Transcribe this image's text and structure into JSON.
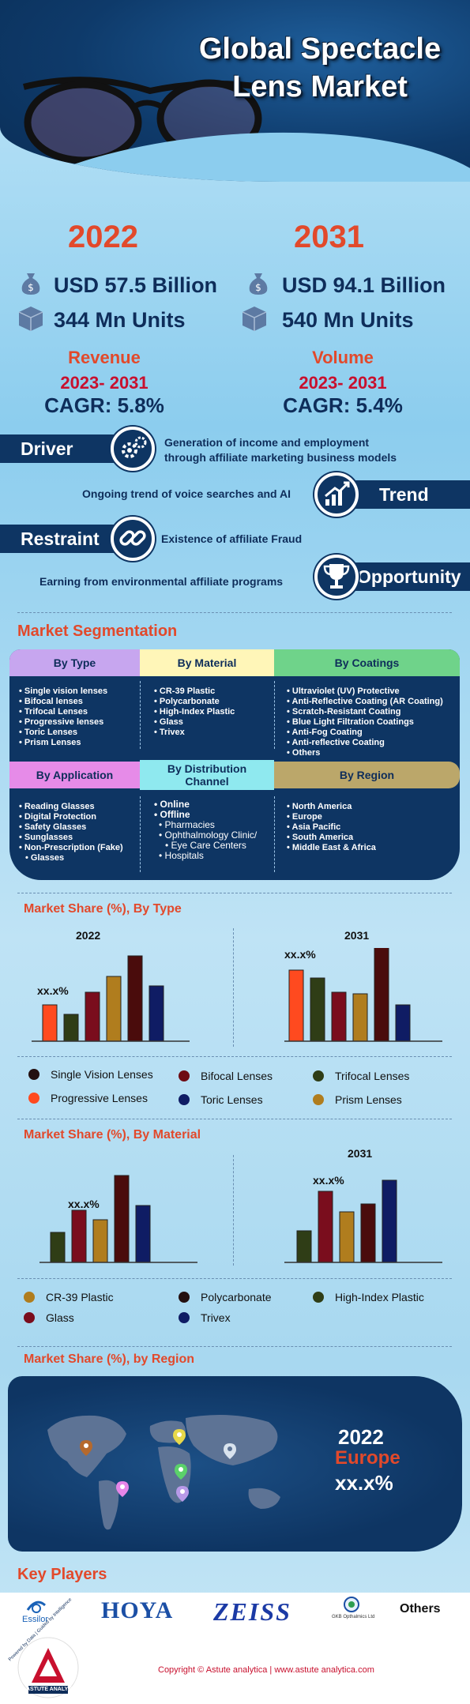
{
  "header": {
    "title_line1": "Global Spectacle",
    "title_line2": "Lens Market"
  },
  "overview": {
    "left": {
      "year": "2022",
      "revenue": "USD 57.5 Billion",
      "volume": "344 Mn Units"
    },
    "right": {
      "year": "2031",
      "revenue": "USD 94.1 Billion",
      "volume": "540 Mn Units"
    },
    "revenue_cagr": {
      "label": "Revenue",
      "years": "2023- 2031",
      "cagr": "CAGR: 5.8%"
    },
    "volume_cagr": {
      "label": "Volume",
      "years": "2023- 2031",
      "cagr": "CAGR: 5.4%"
    }
  },
  "factors": {
    "driver": {
      "label": "Driver",
      "text_line1": "Generation of income and employment",
      "text_line2": "through affiliate marketing business models"
    },
    "trend": {
      "label": "Trend",
      "text": "Ongoing trend of voice searches and AI"
    },
    "restraint": {
      "label": "Restraint",
      "text": "Existence of affiliate Fraud"
    },
    "opportunity": {
      "label": "Opportunity",
      "text": "Earning from environmental affiliate programs"
    }
  },
  "segmentation": {
    "title": "Market Segmentation",
    "type": {
      "label": "By Type",
      "items": [
        "Single vision lenses",
        "Bifocal lenses",
        "Trifocal Lenses",
        "Progressive lenses",
        "Toric Lenses",
        "Prism Lenses"
      ]
    },
    "material": {
      "label": "By Material",
      "items": [
        "CR-39 Plastic",
        "Polycarbonate",
        "High-Index Plastic",
        "Glass",
        "Trivex"
      ]
    },
    "coatings": {
      "label": "By Coatings",
      "items": [
        "Ultraviolet (UV) Protective",
        "Anti-Reflective Coating (AR Coating)",
        "Scratch-Resistant Coating",
        "Blue Light Filtration Coatings",
        "Anti-Fog Coating",
        "Anti-reflective Coating",
        "Others"
      ]
    },
    "application": {
      "label": "By Application",
      "items": [
        "Reading Glasses",
        "Digital Protection",
        "Safety Glasses",
        "Sunglasses",
        "Non-Prescription (Fake)",
        "Glasses"
      ]
    },
    "distribution": {
      "label_line1": "By  Distribution",
      "label_line2": "Channel",
      "online": "Online",
      "offline": "Offline",
      "subitems": [
        "Pharmacies",
        "Ophthalmology Clinic/",
        "Eye Care Centers",
        "Hospitals"
      ]
    },
    "region": {
      "label": "By Region",
      "items": [
        "North America",
        "Europe",
        "Asia Pacific",
        "South America",
        "Middle East & Africa"
      ]
    }
  },
  "colors": {
    "type_header": "#c7a6ef",
    "material_header": "#fff6b8",
    "coatings_header": "#6fd38a",
    "application_header": "#e68be8",
    "distribution_header": "#8fe9ef",
    "region_header": "#bba76a",
    "navy": "#0e3563",
    "accent": "#e2492b"
  },
  "share_by_type": {
    "title": "Market Share (%), By Type",
    "label_2022": "2022",
    "label_2031": "2031",
    "placeholder": "xx.x%",
    "legend": [
      "Single Vision Lenses",
      "Bifocal Lenses",
      "Trifocal Lenses",
      "Progressive Lenses",
      "Toric Lenses",
      "Prism Lenses"
    ],
    "colors_2022": [
      "#ff4a1f",
      "#2f3d16",
      "#7a0d1d",
      "#b07d1e",
      "#4a0c0c",
      "#0f1c64"
    ],
    "colors_2031": [
      "#ff4a1f",
      "#2f3d16",
      "#7a0d1d",
      "#b07d1e",
      "#4a0c0c",
      "#0f1c64"
    ],
    "legend_colors": [
      "#241010",
      "#6e0b13",
      "#2f3d16",
      "#ff4a1f",
      "#0f1c64",
      "#b07d1e"
    ]
  },
  "share_by_material": {
    "title": "Market Share (%), By Material",
    "label_2031": "2031",
    "placeholder": "xx.x%",
    "legend": [
      "CR-39 Plastic",
      "Polycarbonate",
      "High-Index Plastic",
      "Glass",
      "Trivex"
    ],
    "colors": [
      "#2f3d16",
      "#7a0d1d",
      "#b07d1e",
      "#4a0c0c",
      "#0f1c64"
    ],
    "legend_colors": [
      "#b07d1e",
      "#241010",
      "#2f3d16",
      "#7a0d1d",
      "#0f1c64"
    ]
  },
  "share_by_region": {
    "title": "Market Share (%), by Region",
    "year": "2022",
    "region": "Europe",
    "value": "xx.x%"
  },
  "key_players": {
    "title": "Key Players",
    "players": [
      "Essilor",
      "HOYA",
      "ZEISS",
      "GKB Opthalmics Ltd",
      "Others"
    ]
  },
  "footer": {
    "copyright": "Copyright © Astute analytica | www.astute analytica.com",
    "brand": "ASTUTE ANALYTICA",
    "tagline": "Powered by Data | Guided by Intelligence"
  }
}
